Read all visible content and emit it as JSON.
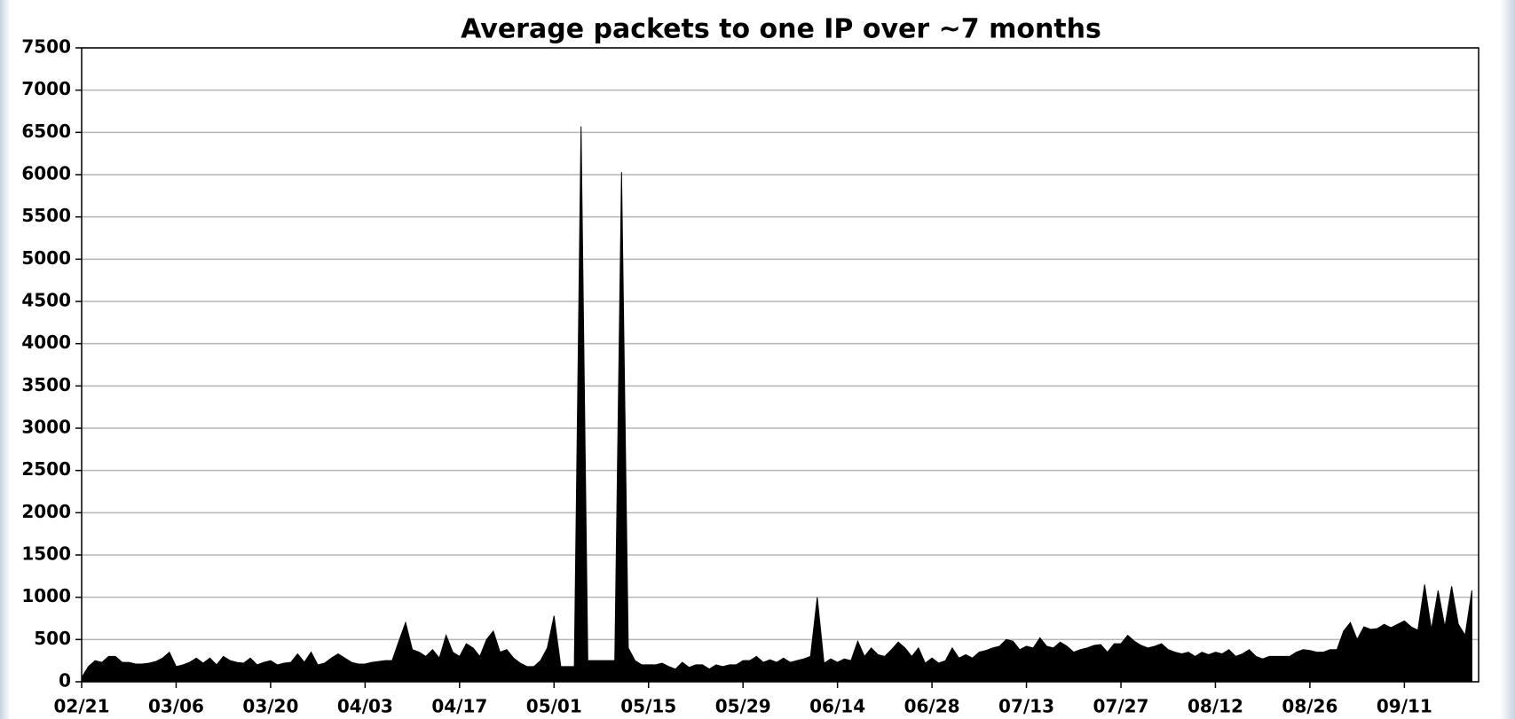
{
  "chart_data": {
    "type": "area",
    "title": "Average packets to one IP over ~7 months",
    "categories": [
      "02/21",
      null,
      null,
      null,
      null,
      null,
      null,
      null,
      null,
      null,
      null,
      null,
      null,
      null,
      "03/06",
      null,
      null,
      null,
      null,
      null,
      null,
      null,
      null,
      null,
      null,
      null,
      null,
      null,
      "03/20",
      null,
      null,
      null,
      null,
      null,
      null,
      null,
      null,
      null,
      null,
      null,
      null,
      null,
      "04/03",
      null,
      null,
      null,
      null,
      null,
      null,
      null,
      null,
      null,
      null,
      null,
      null,
      null,
      "04/17",
      null,
      null,
      null,
      null,
      null,
      null,
      null,
      null,
      null,
      null,
      null,
      null,
      null,
      "05/01",
      null,
      null,
      null,
      null,
      null,
      null,
      null,
      null,
      null,
      null,
      null,
      null,
      null,
      "05/15",
      null,
      null,
      null,
      null,
      null,
      null,
      null,
      null,
      null,
      null,
      null,
      null,
      null,
      "05/29",
      null,
      null,
      null,
      null,
      null,
      null,
      null,
      null,
      null,
      null,
      null,
      null,
      null,
      "06/14",
      null,
      null,
      null,
      null,
      null,
      null,
      null,
      null,
      null,
      null,
      null,
      null,
      null,
      "06/28",
      null,
      null,
      null,
      null,
      null,
      null,
      null,
      null,
      null,
      null,
      null,
      null,
      null,
      "07/13",
      null,
      null,
      null,
      null,
      null,
      null,
      null,
      null,
      null,
      null,
      null,
      null,
      null,
      "07/27",
      null,
      null,
      null,
      null,
      null,
      null,
      null,
      null,
      null,
      null,
      null,
      null,
      null,
      "08/12",
      null,
      null,
      null,
      null,
      null,
      null,
      null,
      null,
      null,
      null,
      null,
      null,
      null,
      "08/26",
      null,
      null,
      null,
      null,
      null,
      null,
      null,
      null,
      null,
      null,
      null,
      null,
      null,
      "09/11",
      null,
      null,
      null,
      null,
      null,
      null,
      null,
      null,
      null,
      null
    ],
    "values": [
      50,
      180,
      250,
      230,
      300,
      300,
      230,
      230,
      210,
      210,
      220,
      240,
      280,
      350,
      180,
      200,
      230,
      280,
      220,
      280,
      200,
      300,
      250,
      230,
      220,
      280,
      200,
      230,
      250,
      200,
      220,
      230,
      330,
      230,
      350,
      200,
      220,
      280,
      330,
      280,
      230,
      210,
      210,
      230,
      240,
      250,
      250,
      480,
      700,
      380,
      350,
      300,
      380,
      280,
      550,
      350,
      300,
      450,
      400,
      300,
      500,
      600,
      350,
      380,
      280,
      220,
      180,
      180,
      250,
      400,
      780,
      180,
      180,
      180,
      6570,
      250,
      250,
      250,
      250,
      250,
      6030,
      400,
      250,
      200,
      200,
      200,
      220,
      180,
      150,
      230,
      170,
      200,
      200,
      150,
      200,
      180,
      200,
      200,
      250,
      250,
      300,
      230,
      260,
      230,
      280,
      230,
      250,
      270,
      300,
      1000,
      220,
      270,
      230,
      270,
      250,
      480,
      300,
      400,
      320,
      300,
      380,
      470,
      400,
      300,
      400,
      220,
      280,
      220,
      250,
      400,
      280,
      320,
      280,
      350,
      370,
      400,
      420,
      500,
      480,
      380,
      420,
      400,
      520,
      420,
      400,
      470,
      420,
      350,
      380,
      400,
      430,
      440,
      350,
      450,
      450,
      550,
      480,
      430,
      400,
      420,
      450,
      380,
      350,
      330,
      350,
      300,
      350,
      320,
      350,
      330,
      380,
      300,
      330,
      380,
      300,
      270,
      300,
      300,
      300,
      300,
      350,
      380,
      370,
      350,
      350,
      380,
      380,
      600,
      700,
      500,
      650,
      620,
      630,
      680,
      640,
      680,
      720,
      650,
      610,
      1150,
      620,
      1080,
      650,
      1130,
      680,
      550,
      1080
    ],
    "color": "#000000",
    "ylim": [
      0,
      7500
    ],
    "yticks": [
      0,
      500,
      1000,
      1500,
      2000,
      2500,
      3000,
      3500,
      4000,
      4500,
      5000,
      5500,
      6000,
      6500,
      7000,
      7500
    ],
    "grid": true
  }
}
